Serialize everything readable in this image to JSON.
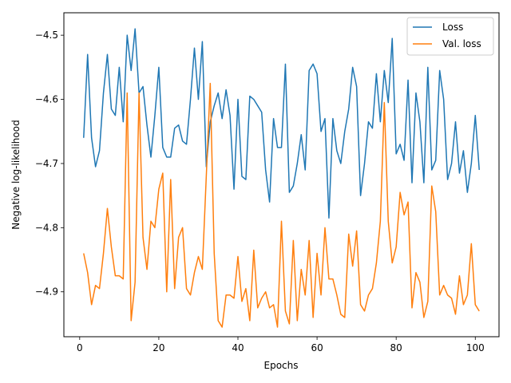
{
  "chart_data": {
    "type": "line",
    "xlabel": "Epochs",
    "ylabel": "Negative log-likelihood",
    "xlim": [
      -4,
      106
    ],
    "ylim": [
      -4.97,
      -4.465
    ],
    "xticks": [
      0,
      20,
      40,
      60,
      80,
      100
    ],
    "yticks": [
      -4.9,
      -4.8,
      -4.7,
      -4.6,
      -4.5
    ],
    "xtick_labels": [
      "0",
      "20",
      "40",
      "60",
      "80",
      "100"
    ],
    "ytick_labels": [
      "−4.9",
      "−4.8",
      "−4.7",
      "−4.6",
      "−4.5"
    ],
    "grid": false,
    "legend_position": "top-right",
    "series": [
      {
        "name": "Loss",
        "color": "#1f77b4",
        "x": [
          1,
          2,
          3,
          4,
          5,
          6,
          7,
          8,
          9,
          10,
          11,
          12,
          13,
          14,
          15,
          16,
          17,
          18,
          19,
          20,
          21,
          22,
          23,
          24,
          25,
          26,
          27,
          28,
          29,
          30,
          31,
          32,
          33,
          34,
          35,
          36,
          37,
          38,
          39,
          40,
          41,
          42,
          43,
          44,
          45,
          46,
          47,
          48,
          49,
          50,
          51,
          52,
          53,
          54,
          55,
          56,
          57,
          58,
          59,
          60,
          61,
          62,
          63,
          64,
          65,
          66,
          67,
          68,
          69,
          70,
          71,
          72,
          73,
          74,
          75,
          76,
          77,
          78,
          79,
          80,
          81,
          82,
          83,
          84,
          85,
          86,
          87,
          88,
          89,
          90,
          91,
          92,
          93,
          94,
          95,
          96,
          97,
          98,
          99,
          100,
          101
        ],
        "values": [
          -4.66,
          -4.53,
          -4.66,
          -4.705,
          -4.68,
          -4.59,
          -4.53,
          -4.615,
          -4.625,
          -4.55,
          -4.635,
          -4.5,
          -4.555,
          -4.49,
          -4.59,
          -4.58,
          -4.64,
          -4.69,
          -4.625,
          -4.55,
          -4.675,
          -4.69,
          -4.69,
          -4.645,
          -4.64,
          -4.665,
          -4.67,
          -4.6,
          -4.52,
          -4.6,
          -4.51,
          -4.705,
          -4.635,
          -4.61,
          -4.59,
          -4.63,
          -4.585,
          -4.625,
          -4.74,
          -4.6,
          -4.72,
          -4.725,
          -4.595,
          -4.6,
          -4.61,
          -4.62,
          -4.71,
          -4.76,
          -4.63,
          -4.675,
          -4.675,
          -4.545,
          -4.745,
          -4.735,
          -4.7,
          -4.655,
          -4.71,
          -4.555,
          -4.545,
          -4.56,
          -4.65,
          -4.63,
          -4.785,
          -4.63,
          -4.68,
          -4.7,
          -4.65,
          -4.615,
          -4.55,
          -4.58,
          -4.75,
          -4.7,
          -4.635,
          -4.645,
          -4.56,
          -4.635,
          -4.555,
          -4.605,
          -4.505,
          -4.685,
          -4.67,
          -4.695,
          -4.57,
          -4.73,
          -4.59,
          -4.635,
          -4.73,
          -4.55,
          -4.71,
          -4.695,
          -4.555,
          -4.6,
          -4.725,
          -4.7,
          -4.635,
          -4.715,
          -4.68,
          -4.745,
          -4.7,
          -4.625,
          -4.71
        ]
      },
      {
        "name": "Val. loss",
        "color": "#ff7f0e",
        "x": [
          1,
          2,
          3,
          4,
          5,
          6,
          7,
          8,
          9,
          10,
          11,
          12,
          13,
          14,
          15,
          16,
          17,
          18,
          19,
          20,
          21,
          22,
          23,
          24,
          25,
          26,
          27,
          28,
          29,
          30,
          31,
          32,
          33,
          34,
          35,
          36,
          37,
          38,
          39,
          40,
          41,
          42,
          43,
          44,
          45,
          46,
          47,
          48,
          49,
          50,
          51,
          52,
          53,
          54,
          55,
          56,
          57,
          58,
          59,
          60,
          61,
          62,
          63,
          64,
          65,
          66,
          67,
          68,
          69,
          70,
          71,
          72,
          73,
          74,
          75,
          76,
          77,
          78,
          79,
          80,
          81,
          82,
          83,
          84,
          85,
          86,
          87,
          88,
          89,
          90,
          91,
          92,
          93,
          94,
          95,
          96,
          97,
          98,
          99,
          100,
          101
        ],
        "values": [
          -4.84,
          -4.87,
          -4.92,
          -4.89,
          -4.895,
          -4.84,
          -4.77,
          -4.83,
          -4.875,
          -4.875,
          -4.88,
          -4.59,
          -4.945,
          -4.885,
          -4.59,
          -4.815,
          -4.865,
          -4.79,
          -4.8,
          -4.74,
          -4.715,
          -4.9,
          -4.725,
          -4.895,
          -4.815,
          -4.8,
          -4.895,
          -4.905,
          -4.87,
          -4.845,
          -4.865,
          -4.72,
          -4.575,
          -4.84,
          -4.945,
          -4.955,
          -4.905,
          -4.905,
          -4.91,
          -4.845,
          -4.915,
          -4.895,
          -4.945,
          -4.835,
          -4.925,
          -4.91,
          -4.9,
          -4.925,
          -4.92,
          -4.955,
          -4.79,
          -4.93,
          -4.95,
          -4.82,
          -4.945,
          -4.865,
          -4.905,
          -4.82,
          -4.94,
          -4.84,
          -4.905,
          -4.8,
          -4.88,
          -4.88,
          -4.905,
          -4.935,
          -4.94,
          -4.81,
          -4.86,
          -4.805,
          -4.92,
          -4.93,
          -4.905,
          -4.895,
          -4.855,
          -4.79,
          -4.605,
          -4.79,
          -4.855,
          -4.83,
          -4.745,
          -4.78,
          -4.76,
          -4.925,
          -4.87,
          -4.885,
          -4.94,
          -4.915,
          -4.735,
          -4.775,
          -4.905,
          -4.89,
          -4.905,
          -4.91,
          -4.935,
          -4.875,
          -4.92,
          -4.905,
          -4.825,
          -4.92,
          -4.93
        ]
      }
    ]
  }
}
